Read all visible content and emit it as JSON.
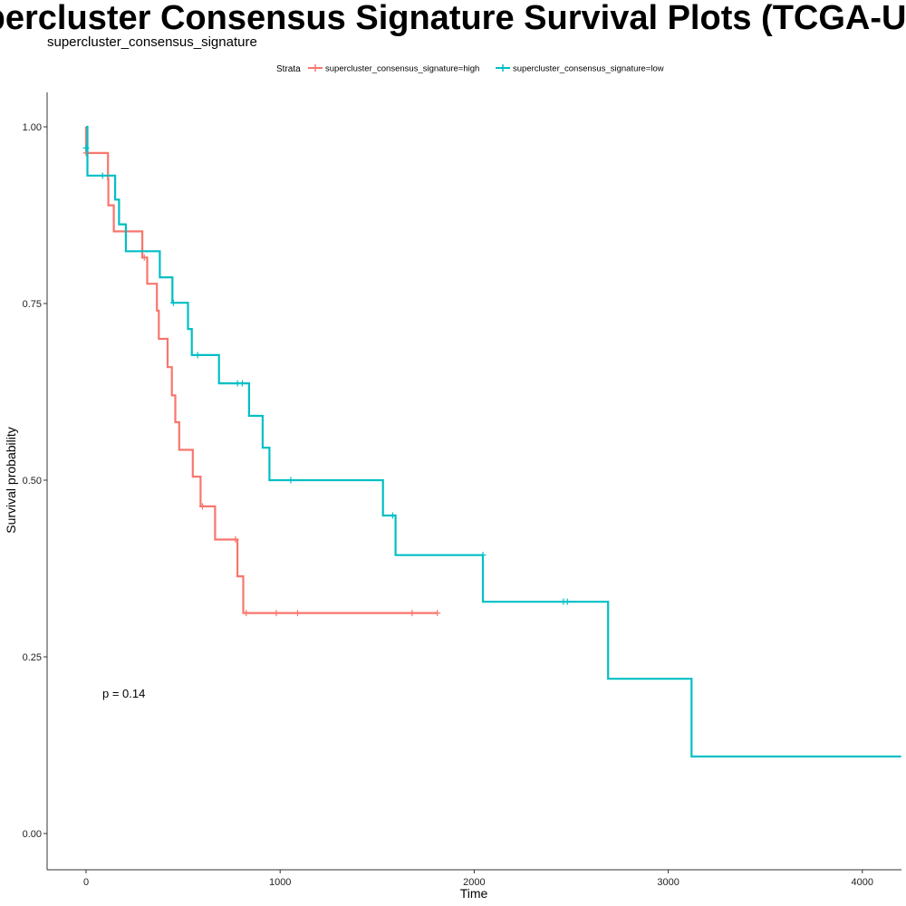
{
  "chart_data": {
    "type": "line",
    "title": "Supercluster Consensus Signature Survival Plots (TCGA-UCS)",
    "subtitle": "supercluster_consensus_signature",
    "xlabel": "Time",
    "ylabel": "Survival probability",
    "xlim": [
      -200,
      4200
    ],
    "ylim": [
      -0.05,
      1.05
    ],
    "x_ticks": [
      0,
      1000,
      2000,
      3000,
      4000
    ],
    "y_ticks": [
      0.0,
      0.25,
      0.5,
      0.75,
      1.0
    ],
    "x_tick_labels": [
      "0",
      "1000",
      "2000",
      "3000",
      "4000"
    ],
    "y_tick_labels": [
      "0.00",
      "0.25",
      "0.50",
      "0.75",
      "1.00"
    ],
    "grid": false,
    "legend": {
      "title": "Strata",
      "position": "top",
      "entries": [
        "supercluster_consensus_signature=high",
        "supercluster_consensus_signature=low"
      ]
    },
    "annotation": "p = 0.14",
    "series": [
      {
        "name": "supercluster_consensus_signature=high",
        "color": "#F8766D",
        "steps": [
          [
            0,
            1.0
          ],
          [
            0,
            0.963
          ],
          [
            113,
            0.926
          ],
          [
            115,
            0.889
          ],
          [
            143,
            0.852
          ],
          [
            290,
            0.815
          ],
          [
            315,
            0.778
          ],
          [
            365,
            0.74
          ],
          [
            375,
            0.7
          ],
          [
            420,
            0.66
          ],
          [
            442,
            0.62
          ],
          [
            460,
            0.582
          ],
          [
            480,
            0.543
          ],
          [
            550,
            0.505
          ],
          [
            590,
            0.463
          ],
          [
            665,
            0.416
          ],
          [
            780,
            0.364
          ],
          [
            810,
            0.312
          ],
          [
            1810,
            0.312
          ]
        ],
        "censors": [
          [
            0,
            0.963
          ],
          [
            300,
            0.815
          ],
          [
            600,
            0.463
          ],
          [
            770,
            0.416
          ],
          [
            825,
            0.312
          ],
          [
            980,
            0.312
          ],
          [
            1090,
            0.312
          ],
          [
            1680,
            0.312
          ],
          [
            1810,
            0.312
          ]
        ]
      },
      {
        "name": "supercluster_consensus_signature=low",
        "color": "#00BFC4",
        "steps": [
          [
            0,
            1.0
          ],
          [
            7,
            0.931
          ],
          [
            150,
            0.897
          ],
          [
            170,
            0.862
          ],
          [
            205,
            0.824
          ],
          [
            380,
            0.787
          ],
          [
            445,
            0.751
          ],
          [
            525,
            0.714
          ],
          [
            545,
            0.677
          ],
          [
            685,
            0.637
          ],
          [
            840,
            0.591
          ],
          [
            910,
            0.546
          ],
          [
            945,
            0.5
          ],
          [
            1530,
            0.45
          ],
          [
            1595,
            0.394
          ],
          [
            2045,
            0.328
          ],
          [
            2690,
            0.219
          ],
          [
            3120,
            0.109
          ],
          [
            4200,
            0.109
          ]
        ],
        "censors": [
          [
            0,
            0.97
          ],
          [
            85,
            0.931
          ],
          [
            450,
            0.751
          ],
          [
            575,
            0.677
          ],
          [
            780,
            0.637
          ],
          [
            805,
            0.637
          ],
          [
            1055,
            0.5
          ],
          [
            1580,
            0.45
          ],
          [
            2045,
            0.394
          ],
          [
            2460,
            0.328
          ],
          [
            2480,
            0.328
          ]
        ]
      }
    ]
  }
}
